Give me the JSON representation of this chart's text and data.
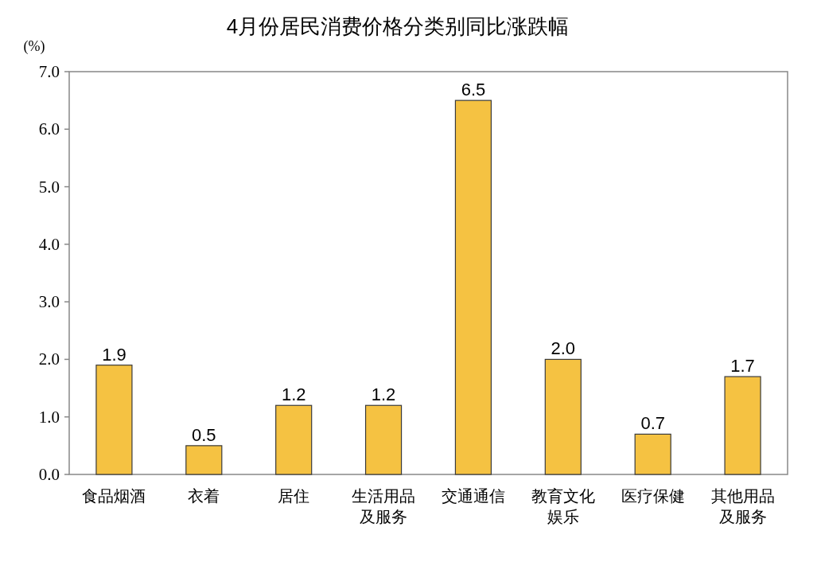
{
  "chart_data": {
    "type": "bar",
    "title": "4月份居民消费价格分类别同比涨跌幅",
    "ylabel": "(%)",
    "categories": [
      "食品烟酒",
      "衣着",
      "居住",
      "生活用品及服务",
      "交通通信",
      "教育文化娱乐",
      "医疗保健",
      "其他用品及服务"
    ],
    "values": [
      1.9,
      0.5,
      1.2,
      1.2,
      6.5,
      2.0,
      0.7,
      1.7
    ],
    "color": "#f5c242",
    "ylim": [
      0,
      7
    ],
    "yticks": [
      {
        "value": 0,
        "label": "0.0"
      },
      {
        "value": 1,
        "label": "1.0"
      },
      {
        "value": 2,
        "label": "2.0"
      },
      {
        "value": 3,
        "label": "3.0"
      },
      {
        "value": 4,
        "label": "4.0"
      },
      {
        "value": 5,
        "label": "5.0"
      },
      {
        "value": 6,
        "label": "6.0"
      },
      {
        "value": 7,
        "label": "7.0"
      }
    ],
    "value_labels": [
      "1.9",
      "0.5",
      "1.2",
      "1.2",
      "6.5",
      "2.0",
      "0.7",
      "1.7"
    ]
  }
}
